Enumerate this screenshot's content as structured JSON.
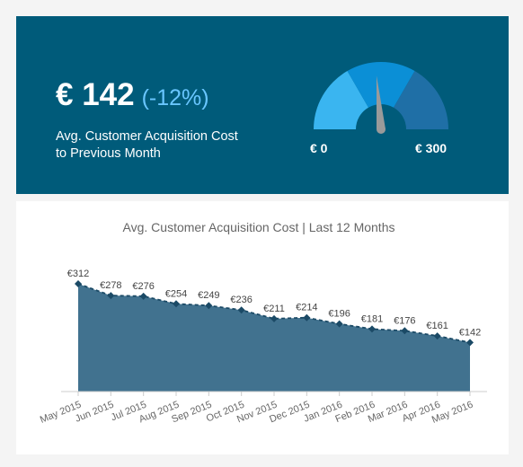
{
  "kpi": {
    "value": "€ 142",
    "change": "(-12%)",
    "label": "Avg. Customer Acquisition  Cost\nto Previous Month"
  },
  "gauge": {
    "min_label": "€ 0",
    "max_label": "€ 300",
    "min": 0,
    "max": 300,
    "value": 142,
    "colors": [
      "#3ab5f0",
      "#0b8fd6",
      "#1f6fa6"
    ]
  },
  "chart_data": {
    "type": "area",
    "title": "Avg. Customer Acquisition Cost | Last 12 Months",
    "categories": [
      "May 2015",
      "Jun 2015",
      "Jul 2015",
      "Aug 2015",
      "Sep 2015",
      "Oct 2015",
      "Nov 2015",
      "Dec 2015",
      "Jan 2016",
      "Feb 2016",
      "Mar 2016",
      "Apr 2016",
      "May 2016"
    ],
    "values": [
      312,
      278,
      276,
      254,
      249,
      236,
      211,
      214,
      196,
      181,
      176,
      161,
      142
    ],
    "value_labels": [
      "€312",
      "€278",
      "€276",
      "€254",
      "€249",
      "€236",
      "€211",
      "€214",
      "€196",
      "€181",
      "€176",
      "€161",
      "€142"
    ],
    "ylim": [
      0,
      340
    ],
    "grid": false,
    "fill_color": "#41728f",
    "line_color": "#1b4a66"
  }
}
